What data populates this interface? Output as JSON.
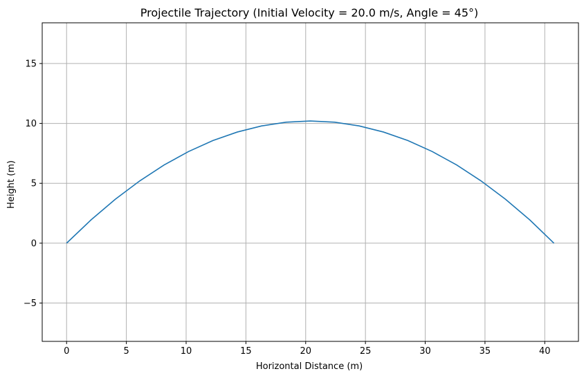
{
  "chart_data": {
    "type": "line",
    "title": "Projectile Trajectory (Initial Velocity = 20.0 m/s, Angle = 45°)",
    "xlabel": "Horizontal Distance (m)",
    "ylabel": "Height (m)",
    "xlim": [
      -2.04,
      42.82
    ],
    "ylim": [
      -8.2,
      18.4
    ],
    "x_ticks": [
      0,
      5,
      10,
      15,
      20,
      25,
      30,
      35,
      40
    ],
    "x_tick_labels": [
      "0",
      "5",
      "10",
      "15",
      "20",
      "25",
      "30",
      "35",
      "40"
    ],
    "y_ticks": [
      -5,
      0,
      5,
      10,
      15
    ],
    "y_tick_labels": [
      "−5",
      "0",
      "5",
      "10",
      "15"
    ],
    "grid": true,
    "line_color": "#1f77b4",
    "series": [
      {
        "x": [
          0,
          2.04,
          4.08,
          6.12,
          8.16,
          10.2,
          12.24,
          14.28,
          16.32,
          18.36,
          20.39,
          22.43,
          24.47,
          26.51,
          28.55,
          30.59,
          32.63,
          34.67,
          36.71,
          38.75,
          40.77
        ],
        "y": [
          0,
          1.94,
          3.67,
          5.2,
          6.53,
          7.65,
          8.57,
          9.28,
          9.79,
          10.1,
          10.2,
          10.1,
          9.79,
          9.28,
          8.57,
          7.65,
          6.53,
          5.2,
          3.67,
          1.94,
          0
        ]
      }
    ]
  }
}
